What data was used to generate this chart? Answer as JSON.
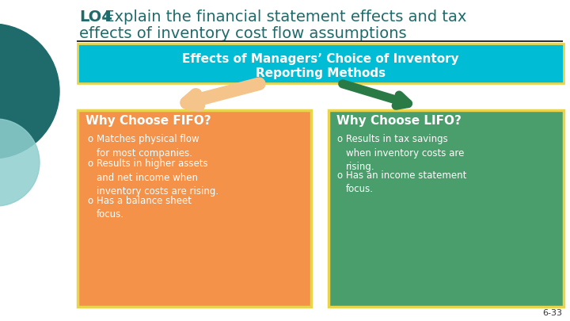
{
  "bg_color": "#ffffff",
  "title_bold": "LO4",
  "title_normal": " Explain the financial statement effects and tax",
  "title_line2": "effects of inventory cost flow assumptions",
  "title_color": "#1f6b6b",
  "header_text_line1": "Effects of Managers’ Choice of Inventory",
  "header_text_line2": "Reporting Methods",
  "header_bg": "#00bcd4",
  "header_border": "#e8d44d",
  "header_text_color": "#ffffff",
  "fifo_bg": "#f4924a",
  "lifo_bg": "#4a9e6b",
  "fifo_border": "#e8d44d",
  "lifo_border": "#e8d44d",
  "fifo_title": "Why Choose FIFO?",
  "lifo_title": "Why Choose LIFO?",
  "box_title_color": "#ffffff",
  "bullet_text_color": "#ffffff",
  "arrow_fifo_color": "#f4c48a",
  "arrow_lifo_color": "#2a7a45",
  "circle_dark": "#1f6b6b",
  "circle_light": "#8ecece",
  "separator_color": "#333333",
  "page_num": "6-33",
  "fifo_bullets": [
    "Matches physical flow\nfor most companies.",
    "Results in higher assets\nand net income when\ninventory costs are rising.",
    "Has a balance sheet\nfocus."
  ],
  "lifo_bullets": [
    "Results in tax savings\nwhen inventory costs are\nrising.",
    "Has an income statement\nfocus."
  ]
}
